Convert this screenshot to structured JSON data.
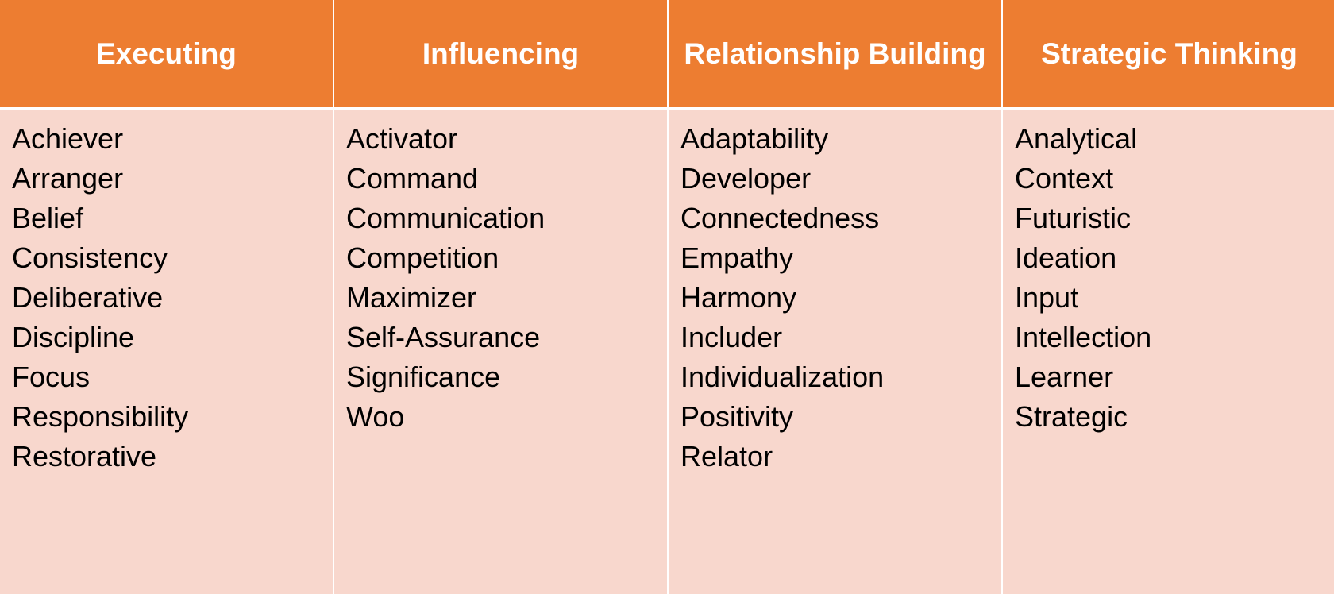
{
  "colors": {
    "header_bg": "#ED7D31",
    "header_text": "#FFFFFF",
    "body_bg": "#F8D7CD",
    "body_text": "#000000"
  },
  "columns": [
    {
      "header": "Executing",
      "items": [
        "Achiever",
        "Arranger",
        "Belief",
        "Consistency",
        "Deliberative",
        "Discipline",
        "Focus",
        "Responsibility",
        "Restorative"
      ]
    },
    {
      "header": "Influencing",
      "items": [
        "Activator",
        "Command",
        "Communication",
        "Competition",
        "Maximizer",
        "Self-Assurance",
        "Significance",
        "Woo"
      ]
    },
    {
      "header": "Relationship Building",
      "items": [
        "Adaptability",
        "Developer",
        "Connectedness",
        "Empathy",
        "Harmony",
        "Includer",
        "Individualization",
        "Positivity",
        "Relator"
      ]
    },
    {
      "header": "Strategic Thinking",
      "items": [
        "Analytical",
        "Context",
        "Futuristic",
        "Ideation",
        "Input",
        "Intellection",
        "Learner",
        "Strategic"
      ]
    }
  ]
}
